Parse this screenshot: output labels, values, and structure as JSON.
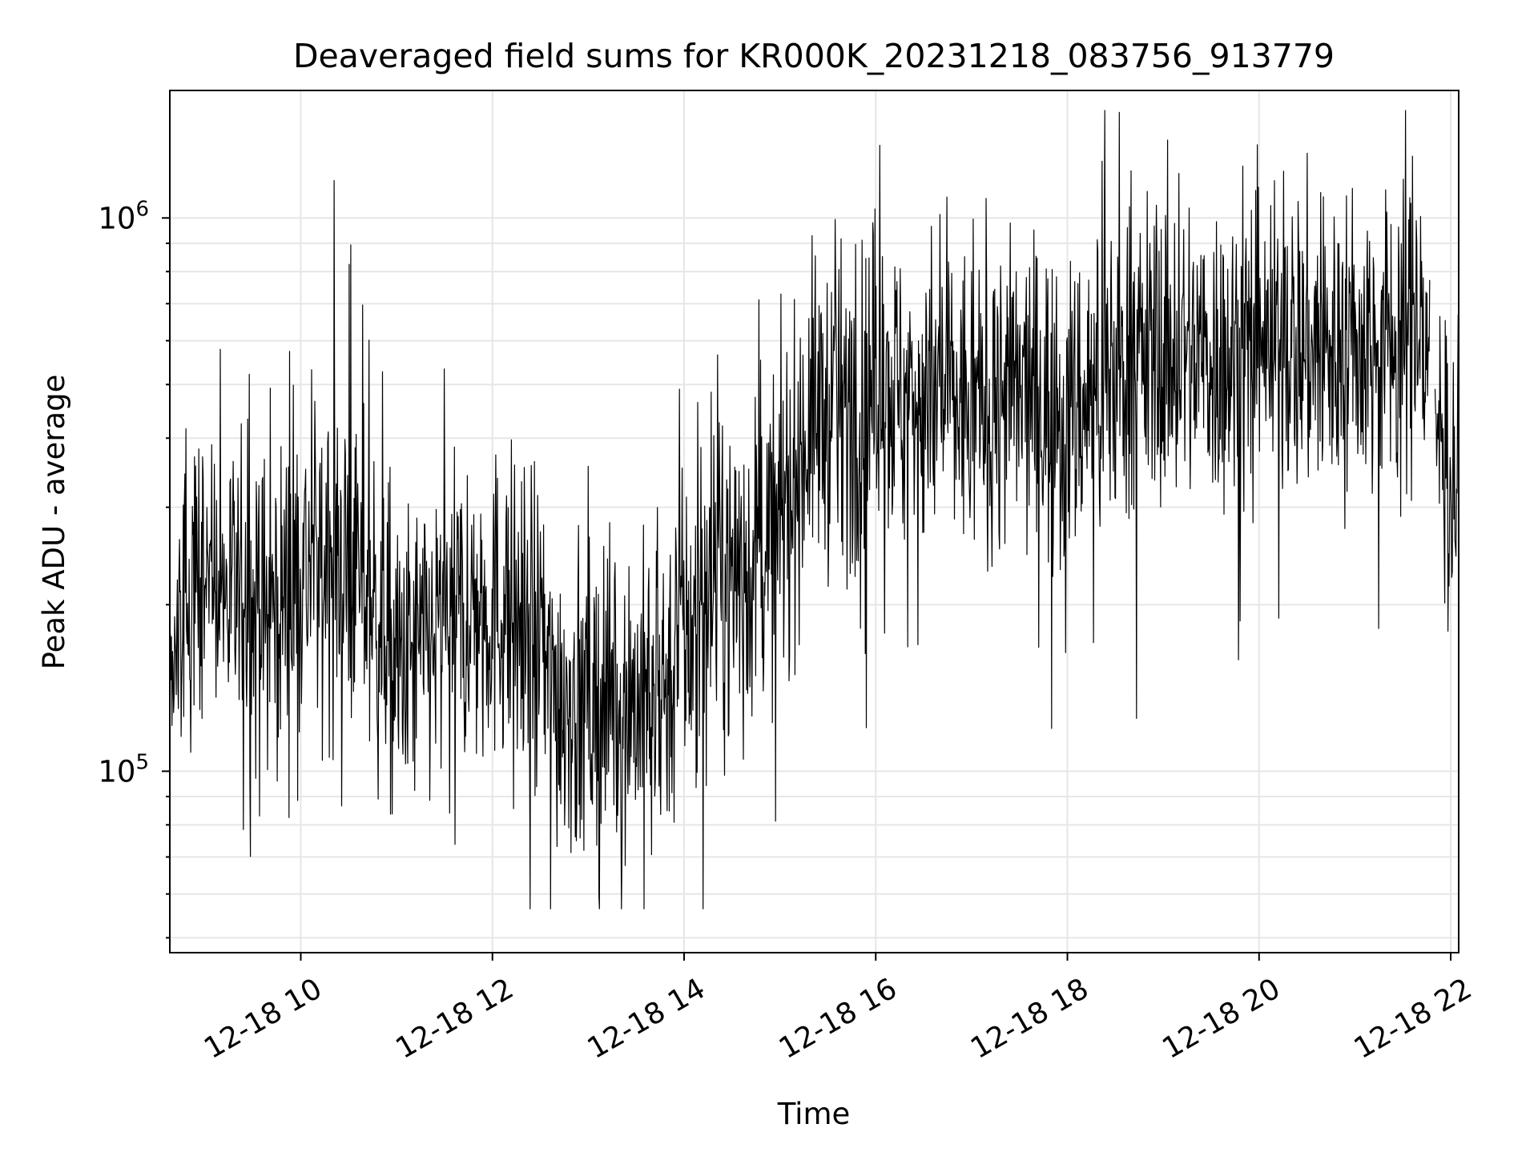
{
  "chart_data": {
    "type": "line",
    "title": "Deaveraged field sums for KR000K_20231218_083756_913779",
    "xlabel": "Time",
    "ylabel": "Peak ADU - average",
    "xlim": [
      "2023-12-18 08:38",
      "2023-12-18 22:05"
    ],
    "ylim": [
      47000,
      1700000
    ],
    "yscale": "log",
    "grid": true,
    "x_tick_labels": [
      "12-18 10",
      "12-18 12",
      "12-18 14",
      "12-18 16",
      "12-18 18",
      "12-18 20",
      "12-18 22"
    ],
    "x_tick_values": [
      "2023-12-18 10:00",
      "2023-12-18 12:00",
      "2023-12-18 14:00",
      "2023-12-18 16:00",
      "2023-12-18 18:00",
      "2023-12-18 20:00",
      "2023-12-18 22:00"
    ],
    "y_tick_labels": [
      {
        "base": "10",
        "exp": "5",
        "value": 100000
      },
      {
        "base": "10",
        "exp": "6",
        "value": 1000000
      }
    ],
    "line_color": "#000000",
    "gap": [
      "2023-12-18 21:47",
      "2023-12-18 21:50"
    ],
    "series": [
      {
        "x": [
          "2023-12-18 08:40",
          "2023-12-18 09:00",
          "2023-12-18 09:20",
          "2023-12-18 09:40",
          "2023-12-18 10:00",
          "2023-12-18 10:20",
          "2023-12-18 10:40",
          "2023-12-18 11:00",
          "2023-12-18 11:20",
          "2023-12-18 11:40",
          "2023-12-18 12:00",
          "2023-12-18 12:20",
          "2023-12-18 12:40",
          "2023-12-18 13:00",
          "2023-12-18 13:20",
          "2023-12-18 13:40",
          "2023-12-18 14:00",
          "2023-12-18 14:20",
          "2023-12-18 14:40",
          "2023-12-18 15:00",
          "2023-12-18 15:20",
          "2023-12-18 15:40",
          "2023-12-18 16:00",
          "2023-12-18 16:20",
          "2023-12-18 16:40",
          "2023-12-18 17:00",
          "2023-12-18 17:20",
          "2023-12-18 17:40",
          "2023-12-18 18:00",
          "2023-12-18 18:20",
          "2023-12-18 18:40",
          "2023-12-18 19:00",
          "2023-12-18 19:20",
          "2023-12-18 19:40",
          "2023-12-18 20:00",
          "2023-12-18 20:20",
          "2023-12-18 20:40",
          "2023-12-18 21:00",
          "2023-12-18 21:20",
          "2023-12-18 21:40",
          "2023-12-18 22:00"
        ],
        "values": [
          170000,
          220000,
          200000,
          190000,
          230000,
          240000,
          220000,
          150000,
          170000,
          190000,
          200000,
          190000,
          140000,
          130000,
          140000,
          130000,
          170000,
          220000,
          230000,
          280000,
          440000,
          450000,
          500000,
          480000,
          470000,
          450000,
          480000,
          470000,
          440000,
          500000,
          560000,
          570000,
          570000,
          560000,
          560000,
          600000,
          570000,
          580000,
          600000,
          650000,
          330000
        ]
      }
    ]
  }
}
